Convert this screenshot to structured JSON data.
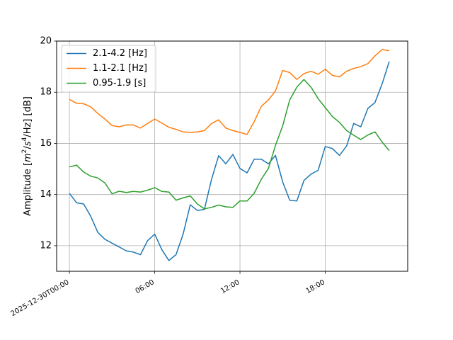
{
  "chart_data": {
    "type": "line",
    "ylabel_prefix": "Amplitude [",
    "ylabel_m": "m",
    "ylabel_m_sup": "2",
    "ylabel_sep": "/",
    "ylabel_s": "s",
    "ylabel_s_sup": "4",
    "ylabel_suffix": "/Hz] [dB]",
    "ylim": [
      11.0,
      20.0
    ],
    "yticks": [
      12,
      14,
      16,
      18,
      20
    ],
    "xlim_hours": [
      -0.9,
      23.8
    ],
    "xticks": [
      {
        "hour": 0,
        "label": "2025-12-30T00:00"
      },
      {
        "hour": 6,
        "label": "06:00"
      },
      {
        "hour": 12,
        "label": "12:00"
      },
      {
        "hour": 18,
        "label": "18:00"
      }
    ],
    "grid": true,
    "legend_position": "upper-left",
    "x_hours": [
      0,
      0.5,
      1,
      1.5,
      2,
      2.5,
      3,
      3.5,
      4,
      4.5,
      5,
      5.5,
      6,
      6.5,
      7,
      7.5,
      8,
      8.5,
      9,
      9.5,
      10,
      10.5,
      11,
      11.5,
      12,
      12.5,
      13,
      13.5,
      14,
      14.5,
      15,
      15.5,
      16,
      16.5,
      17,
      17.5,
      18,
      18.5,
      19,
      19.5,
      20,
      20.5,
      21,
      21.5,
      22,
      22.5
    ],
    "series": [
      {
        "name": "2.1-4.2 [Hz]",
        "color": "#1f77b4",
        "values": [
          14.05,
          13.68,
          13.63,
          13.15,
          12.52,
          12.25,
          12.1,
          11.95,
          11.8,
          11.75,
          11.65,
          12.2,
          12.45,
          11.85,
          11.42,
          11.65,
          12.45,
          13.6,
          13.38,
          13.42,
          14.6,
          15.52,
          15.2,
          15.57,
          15.02,
          14.85,
          15.38,
          15.38,
          15.2,
          15.53,
          14.5,
          13.78,
          13.75,
          14.55,
          14.8,
          14.95,
          15.88,
          15.8,
          15.53,
          15.9,
          16.78,
          16.65,
          17.37,
          17.6,
          18.33,
          19.2
        ]
      },
      {
        "name": "1.1-2.1 [Hz]",
        "color": "#ff7f0e",
        "values": [
          17.72,
          17.57,
          17.55,
          17.43,
          17.17,
          16.95,
          16.7,
          16.65,
          16.72,
          16.72,
          16.6,
          16.78,
          16.95,
          16.8,
          16.63,
          16.55,
          16.45,
          16.43,
          16.45,
          16.5,
          16.78,
          16.92,
          16.6,
          16.5,
          16.43,
          16.35,
          16.85,
          17.45,
          17.7,
          18.05,
          18.85,
          18.77,
          18.5,
          18.73,
          18.82,
          18.7,
          18.9,
          18.66,
          18.6,
          18.82,
          18.93,
          19.0,
          19.12,
          19.42,
          19.67,
          19.62
        ]
      },
      {
        "name": "0.95-1.9 [s]",
        "color": "#2ca02c",
        "values": [
          15.08,
          15.15,
          14.88,
          14.72,
          14.65,
          14.45,
          14.03,
          14.13,
          14.08,
          14.12,
          14.1,
          14.17,
          14.27,
          14.12,
          14.1,
          13.78,
          13.87,
          13.95,
          13.63,
          13.44,
          13.5,
          13.59,
          13.52,
          13.5,
          13.75,
          13.75,
          14.05,
          14.6,
          15.02,
          15.92,
          16.68,
          17.7,
          18.2,
          18.5,
          18.2,
          17.75,
          17.4,
          17.05,
          16.82,
          16.5,
          16.32,
          16.15,
          16.33,
          16.45,
          16.05,
          15.72
        ]
      }
    ]
  }
}
